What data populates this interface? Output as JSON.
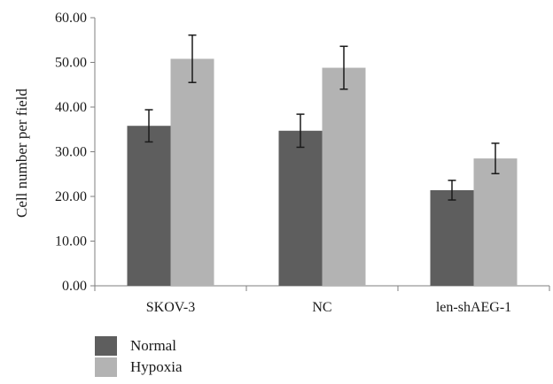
{
  "chart_data": {
    "type": "bar",
    "title": "",
    "xlabel": "",
    "ylabel": "Cell number per field",
    "ylim": [
      0,
      60
    ],
    "yticks": [
      "0.00",
      "10.00",
      "20.00",
      "30.00",
      "40.00",
      "50.00",
      "60.00"
    ],
    "grid": false,
    "legend_position": "bottom-left",
    "categories": [
      "SKOV-3",
      "NC",
      "len-shAEG-1"
    ],
    "series": [
      {
        "name": "Normal",
        "color": "#5e5e5e",
        "values": [
          35.8,
          34.7,
          21.4
        ],
        "error": [
          3.6,
          3.7,
          2.2
        ]
      },
      {
        "name": "Hypoxia",
        "color": "#b3b3b3",
        "values": [
          50.8,
          48.8,
          28.5
        ],
        "error": [
          5.3,
          4.8,
          3.4
        ]
      }
    ]
  }
}
